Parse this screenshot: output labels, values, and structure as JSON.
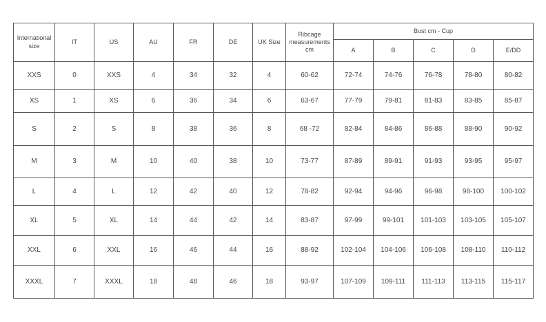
{
  "table": {
    "name": "bra-size-conversion-chart",
    "header": {
      "international_size": "International size",
      "it": "IT",
      "us": "US",
      "au": "AU",
      "fr": "FR",
      "de": "DE",
      "uk_size": "UK Size",
      "ribcage": "Ribcage measurements cm",
      "bust_group": "Bust cm - Cup",
      "cups": [
        "A",
        "B",
        "C",
        "D",
        "E/DD"
      ]
    },
    "rows": [
      [
        "XXS",
        "0",
        "XXS",
        "4",
        "34",
        "32",
        "4",
        "60-62",
        "72-74",
        "74-76",
        "76-78",
        "78-80",
        "80-82"
      ],
      [
        "XS",
        "1",
        "XS",
        "6",
        "36",
        "34",
        "6",
        "63-67",
        "77-79",
        "79-81",
        "81-83",
        "83-85",
        "85-87"
      ],
      [
        "S",
        "2",
        "S",
        "8",
        "38",
        "36",
        "8",
        "68 -72",
        "82-84",
        "84-86",
        "86-88",
        "88-90",
        "90-92"
      ],
      [
        "M",
        "3",
        "M",
        "10",
        "40",
        "38",
        "10",
        "73-77",
        "87-89",
        "89-91",
        "91-93",
        "93-95",
        "95-97"
      ],
      [
        "L",
        "4",
        "L",
        "12",
        "42",
        "40",
        "12",
        "78-82",
        "92-94",
        "94-96",
        "96-98",
        "98-100",
        "100-102"
      ],
      [
        "XL",
        "5",
        "XL",
        "14",
        "44",
        "42",
        "14",
        "83-87",
        "97-99",
        "99-101",
        "101-103",
        "103-105",
        "105-107"
      ],
      [
        "XXL",
        "6",
        "XXL",
        "16",
        "46",
        "44",
        "16",
        "88-92",
        "102-104",
        "104-106",
        "106-108",
        "108-110",
        "110-112"
      ],
      [
        "XXXL",
        "7",
        "XXXL",
        "18",
        "48",
        "46",
        "18",
        "93-97",
        "107-109",
        "109-111",
        "111-113",
        "113-115",
        "115-117"
      ]
    ]
  },
  "colors": {
    "border": "#58585a",
    "text": "#454547",
    "background": "#ffffff"
  }
}
